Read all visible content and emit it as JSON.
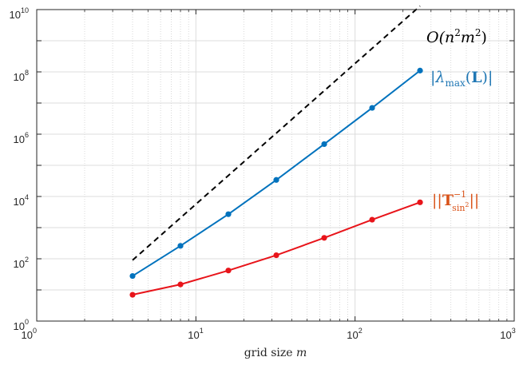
{
  "chart_data": {
    "type": "line",
    "x_scale": "log",
    "y_scale": "log",
    "xlim": [
      1,
      1000
    ],
    "ylim": [
      1,
      10000000000
    ],
    "grid": true,
    "xlabel_pre": "grid size",
    "xlabel_var": "m",
    "x_ticks": [
      {
        "base": "10",
        "exp": "0",
        "value": 1
      },
      {
        "base": "10",
        "exp": "1",
        "value": 10
      },
      {
        "base": "10",
        "exp": "2",
        "value": 100
      },
      {
        "base": "10",
        "exp": "3",
        "value": 1000
      }
    ],
    "y_ticks": [
      {
        "base": "10",
        "exp": "0",
        "value": 1
      },
      {
        "base": "10",
        "exp": "2",
        "value": 100
      },
      {
        "base": "10",
        "exp": "4",
        "value": 10000
      },
      {
        "base": "10",
        "exp": "6",
        "value": 1000000
      },
      {
        "base": "10",
        "exp": "8",
        "value": 100000000
      },
      {
        "base": "10",
        "exp": "10",
        "value": 10000000000
      }
    ],
    "series": [
      {
        "key": "ref",
        "style": "dashed",
        "color": "#000000",
        "x": [
          4,
          256
        ],
        "y": [
          90,
          13000000000
        ]
      },
      {
        "key": "lambda",
        "style": "solid-markers",
        "color": "#0072BD",
        "x": [
          4,
          8,
          16,
          32,
          64,
          128,
          256
        ],
        "y": [
          28,
          260,
          2700,
          34000,
          480000,
          7000000,
          110000000
        ]
      },
      {
        "key": "tinv",
        "style": "solid-markers",
        "color": "#E8141A",
        "x": [
          4,
          8,
          16,
          32,
          64,
          128,
          256
        ],
        "y": [
          7,
          15,
          42,
          130,
          470,
          1800,
          6500
        ]
      }
    ],
    "annotations": {
      "ref": {
        "text_pre": "O(n",
        "sup1": "2",
        "text_mid": "m",
        "sup2": "2",
        "text_post": ")",
        "color": "#000000"
      },
      "lambda": {
        "text_pre": "|λ",
        "sub": "max",
        "text_mid": "(",
        "bold": "L",
        "text_post": ")|",
        "color": "#1f77b4"
      },
      "tinv": {
        "text_pre": "||",
        "bold": "T",
        "sup": "−1",
        "sub": "sin",
        "sub_sup": "2",
        "text_post": "||",
        "color": "#D95319"
      }
    }
  }
}
